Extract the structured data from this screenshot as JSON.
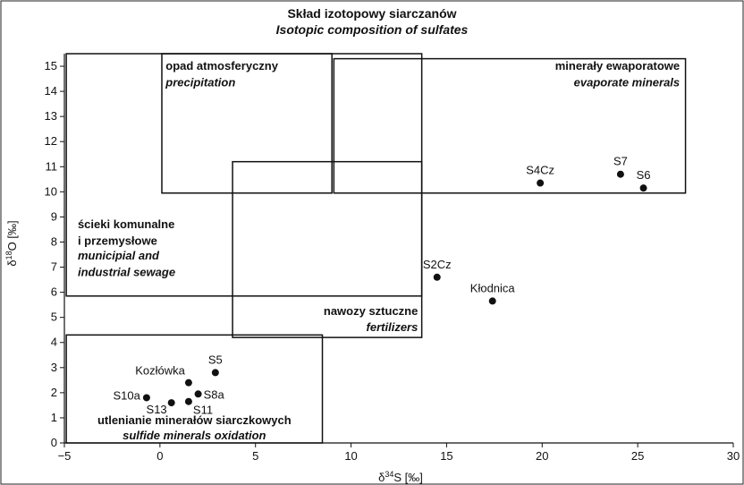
{
  "chart_data": {
    "type": "scatter",
    "title": "Skład izotopowy siarczanów",
    "subtitle": "Isotopic composition of sulfates",
    "xlabel": "δ34S [‰]",
    "ylabel": "δ18O [‰]",
    "xlim": [
      -5,
      30
    ],
    "ylim": [
      0,
      15.5
    ],
    "xticks": [
      -5,
      0,
      5,
      10,
      15,
      20,
      25,
      30
    ],
    "yticks": [
      0,
      1,
      2,
      3,
      4,
      5,
      6,
      7,
      8,
      9,
      10,
      11,
      12,
      13,
      14,
      15
    ],
    "grid": false,
    "points": [
      {
        "label": "S4Cz",
        "x": 19.9,
        "y": 10.35
      },
      {
        "label": "S7",
        "x": 24.1,
        "y": 10.7
      },
      {
        "label": "S6",
        "x": 25.3,
        "y": 10.15
      },
      {
        "label": "S2Cz",
        "x": 14.5,
        "y": 6.6
      },
      {
        "label": "Kłodnica",
        "x": 17.4,
        "y": 5.65
      },
      {
        "label": "S5",
        "x": 2.9,
        "y": 2.8
      },
      {
        "label": "Kozłówka",
        "x": 1.5,
        "y": 2.4
      },
      {
        "label": "S8a",
        "x": 2.0,
        "y": 1.95
      },
      {
        "label": "S10a",
        "x": -0.7,
        "y": 1.8
      },
      {
        "label": "S13",
        "x": 0.6,
        "y": 1.6
      },
      {
        "label": "S11",
        "x": 1.5,
        "y": 1.65
      }
    ],
    "regions": [
      {
        "label_pl": "ścieki komunalne",
        "label_pl2": "i przemysłowe",
        "label_en": "municipial and",
        "label_en2": "industrial sewage",
        "x": [
          -4.9,
          13.7
        ],
        "y": [
          5.85,
          15.5
        ]
      },
      {
        "label_pl": "opad atmosferyczny",
        "label_en": "precipitation",
        "x": [
          0.1,
          9.0
        ],
        "y": [
          9.95,
          15.5
        ]
      },
      {
        "label_pl": "minerały ewaporatowe",
        "label_en": "evaporate minerals",
        "x": [
          9.1,
          27.5
        ],
        "y": [
          9.95,
          15.3
        ]
      },
      {
        "label_pl": "nawozy sztuczne",
        "label_en": "fertilizers",
        "x": [
          3.8,
          13.7
        ],
        "y": [
          4.2,
          11.2
        ]
      },
      {
        "label_pl": "utlenianie minerałów siarczkowych",
        "label_en": "sulfide minerals oxidation",
        "x": [
          -4.9,
          8.5
        ],
        "y": [
          0,
          4.3
        ]
      }
    ]
  }
}
